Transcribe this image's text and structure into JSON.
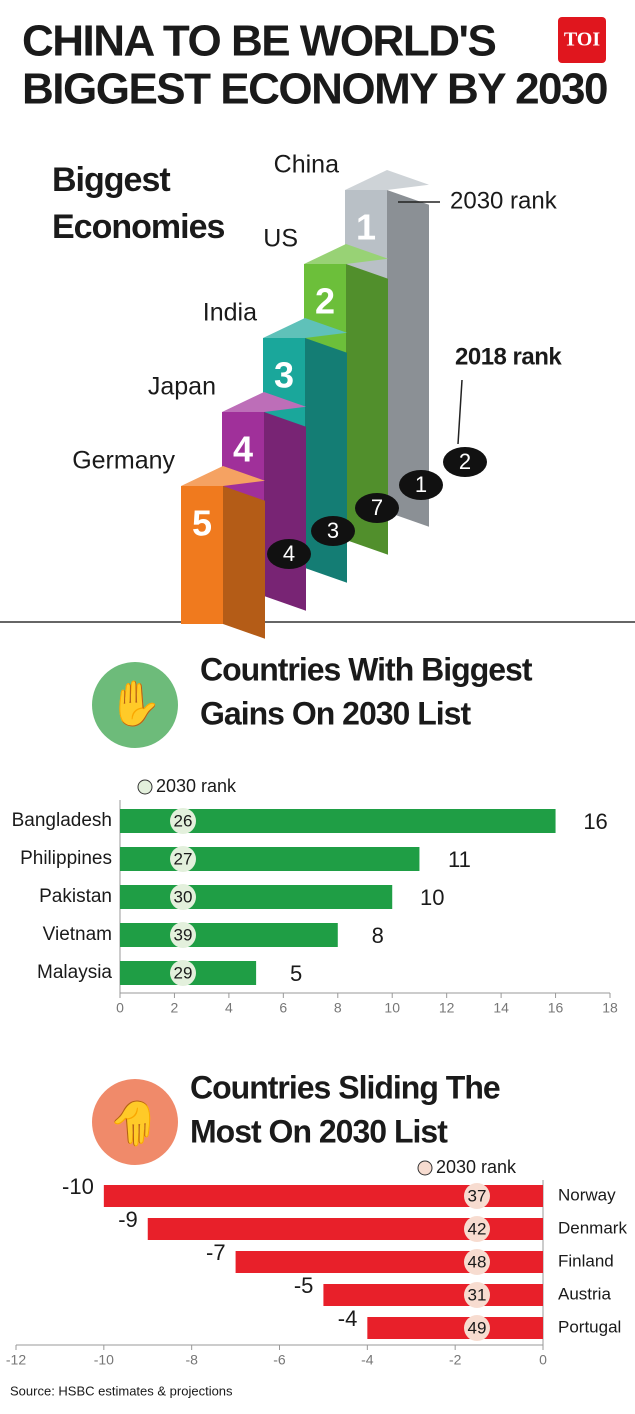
{
  "title_lines": [
    "CHINA TO BE WORLD'S",
    "BIGGEST ECONOMY BY 2030"
  ],
  "logo": "TOI",
  "source": "Source: HSBC estimates & projections",
  "chart_data": [
    {
      "type": "rank-steps",
      "title_lines": [
        "Biggest",
        "Economies"
      ],
      "categories": [
        "China",
        "US",
        "India",
        "Japan",
        "Germany"
      ],
      "series": [
        {
          "name": "2030 rank",
          "values": [
            1,
            2,
            3,
            4,
            5
          ]
        },
        {
          "name": "2018 rank",
          "values": [
            2,
            1,
            7,
            3,
            4
          ]
        }
      ],
      "colors": [
        "#b9c0c6",
        "#6cbf3a",
        "#1aa79b",
        "#a0309a",
        "#f07a1e"
      ]
    },
    {
      "type": "hbar",
      "title_lines": [
        "Countries With Biggest",
        "Gains On 2030 List"
      ],
      "categories": [
        "Bangladesh",
        "Philippines",
        "Pakistan",
        "Vietnam",
        "Malaysia"
      ],
      "values": [
        16,
        11,
        10,
        8,
        5
      ],
      "rank_name": "2030 rank",
      "ranks": [
        26,
        27,
        30,
        39,
        29
      ],
      "color": "#1f9e45",
      "rank_color": "#e3f0dc",
      "icon_color": "#6dbb7a",
      "xlim": [
        0,
        18
      ],
      "xticks": [
        0,
        2,
        4,
        6,
        8,
        10,
        12,
        14,
        16,
        18
      ]
    },
    {
      "type": "hbar",
      "title_lines": [
        "Countries Sliding The",
        "Most On 2030 List"
      ],
      "categories": [
        "Norway",
        "Denmark",
        "Finland",
        "Austria",
        "Portugal"
      ],
      "values": [
        -10,
        -9,
        -7,
        -5,
        -4
      ],
      "rank_name": "2030 rank",
      "ranks": [
        37,
        42,
        48,
        31,
        49
      ],
      "color": "#e8202a",
      "rank_color": "#f7dcd0",
      "icon_color": "#f08a6a",
      "xlim": [
        -12,
        0
      ],
      "xticks": [
        -12,
        -10,
        -8,
        -6,
        -4,
        -2,
        0
      ]
    }
  ]
}
